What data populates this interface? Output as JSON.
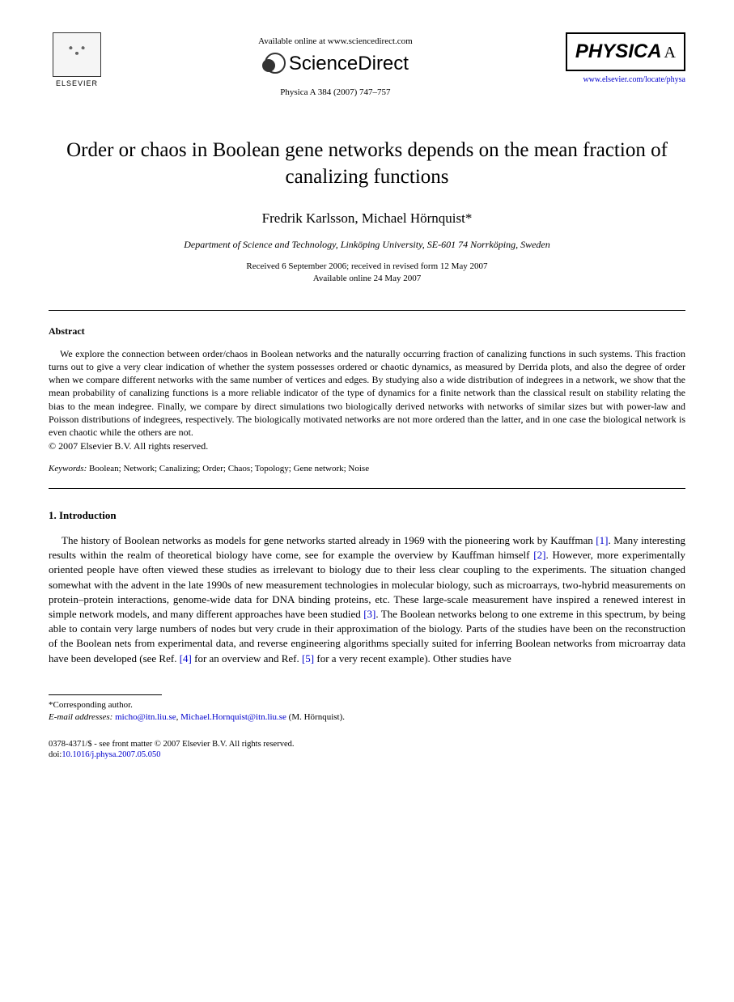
{
  "header": {
    "publisher_name": "ELSEVIER",
    "available_text": "Available online at www.sciencedirect.com",
    "sciencedirect_label": "ScienceDirect",
    "journal_reference": "Physica A 384 (2007) 747–757",
    "journal_logo_main": "PHYSICA",
    "journal_logo_letter": "A",
    "journal_url": "www.elsevier.com/locate/physa"
  },
  "article": {
    "title": "Order or chaos in Boolean gene networks depends on the mean fraction of canalizing functions",
    "authors": "Fredrik Karlsson, Michael Hörnquist*",
    "affiliation": "Department of Science and Technology, Linköping University, SE-601 74 Norrköping, Sweden",
    "dates_line1": "Received 6 September 2006; received in revised form 12 May 2007",
    "dates_line2": "Available online 24 May 2007"
  },
  "abstract": {
    "heading": "Abstract",
    "text": "We explore the connection between order/chaos in Boolean networks and the naturally occurring fraction of canalizing functions in such systems. This fraction turns out to give a very clear indication of whether the system possesses ordered or chaotic dynamics, as measured by Derrida plots, and also the degree of order when we compare different networks with the same number of vertices and edges. By studying also a wide distribution of indegrees in a network, we show that the mean probability of canalizing functions is a more reliable indicator of the type of dynamics for a finite network than the classical result on stability relating the bias to the mean indegree. Finally, we compare by direct simulations two biologically derived networks with networks of similar sizes but with power-law and Poisson distributions of indegrees, respectively. The biologically motivated networks are not more ordered than the latter, and in one case the biological network is even chaotic while the others are not.",
    "copyright": "© 2007 Elsevier B.V. All rights reserved.",
    "keywords_label": "Keywords:",
    "keywords": " Boolean; Network; Canalizing; Order; Chaos; Topology; Gene network; Noise"
  },
  "introduction": {
    "heading": "1. Introduction",
    "paragraph": "The history of Boolean networks as models for gene networks started already in 1969 with the pioneering work by Kauffman [1]. Many interesting results within the realm of theoretical biology have come, see for example the overview by Kauffman himself [2]. However, more experimentally oriented people have often viewed these studies as irrelevant to biology due to their less clear coupling to the experiments. The situation changed somewhat with the advent in the late 1990s of new measurement technologies in molecular biology, such as microarrays, two-hybrid measurements on protein–protein interactions, genome-wide data for DNA binding proteins, etc. These large-scale measurement have inspired a renewed interest in simple network models, and many different approaches have been studied [3]. The Boolean networks belong to one extreme in this spectrum, by being able to contain very large numbers of nodes but very crude in their approximation of the biology. Parts of the studies have been on the reconstruction of the Boolean nets from experimental data, and reverse engineering algorithms specially suited for inferring Boolean networks from microarray data have been developed (see Ref. [4] for an overview and Ref. [5] for a very recent example). Other studies have",
    "refs": [
      "[1]",
      "[2]",
      "[3]",
      "[4]",
      "[5]"
    ]
  },
  "footer": {
    "corresponding": "*Corresponding author.",
    "email_label": "E-mail addresses:",
    "email1": "micho@itn.liu.se",
    "email2": "Michael.Hornquist@itn.liu.se",
    "email_author": " (M. Hörnquist).",
    "issn": "0378-4371/$ - see front matter © 2007 Elsevier B.V. All rights reserved.",
    "doi_label": "doi:",
    "doi": "10.1016/j.physa.2007.05.050"
  },
  "colors": {
    "link": "#0000cc",
    "text": "#000000",
    "background": "#ffffff"
  }
}
